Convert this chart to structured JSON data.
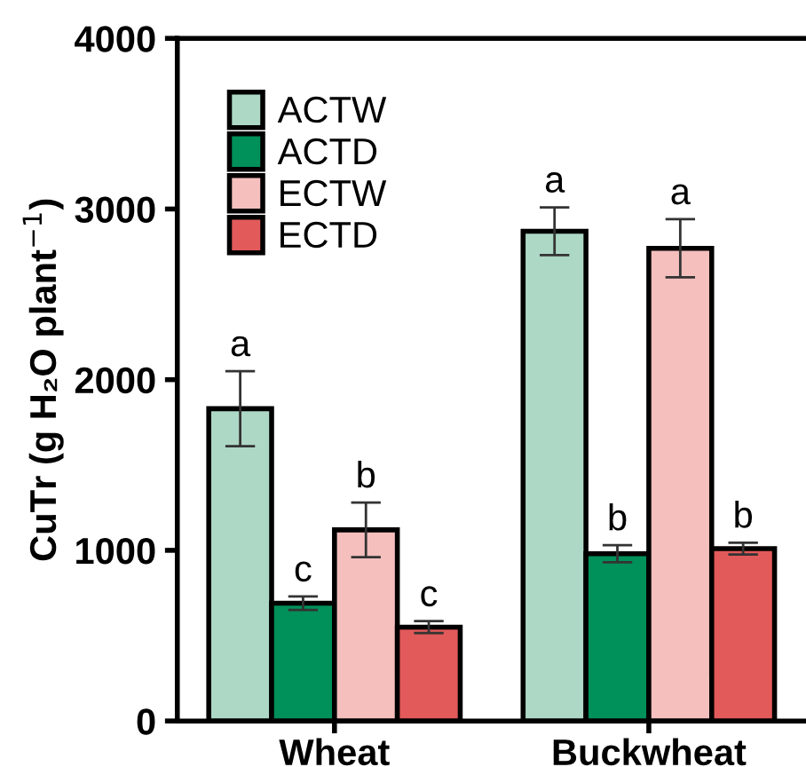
{
  "chart_data": {
    "type": "bar",
    "ylabel": "CuTr (g H₂O plant$^{−1}$)",
    "categories": [
      "Wheat",
      "Buckwheat"
    ],
    "series": [
      {
        "name": "ACTW",
        "color": "#add8c6",
        "values": [
          1830,
          2870
        ],
        "errors": [
          220,
          140
        ],
        "value_labels": [
          "a",
          "a"
        ]
      },
      {
        "name": "ACTD",
        "color": "#00905a",
        "values": [
          690,
          980
        ],
        "errors": [
          40,
          50
        ],
        "value_labels": [
          "c",
          "b"
        ]
      },
      {
        "name": "ECTW",
        "color": "#f4bfbd",
        "values": [
          1120,
          2770
        ],
        "errors": [
          160,
          170
        ],
        "value_labels": [
          "b",
          "a"
        ]
      },
      {
        "name": "ECTD",
        "color": "#e35a5a",
        "values": [
          550,
          1010
        ],
        "errors": [
          35,
          35
        ],
        "value_labels": [
          "c",
          "b"
        ]
      }
    ],
    "ylim": [
      0,
      4000
    ],
    "yticks": [
      0,
      1000,
      2000,
      3000,
      4000
    ],
    "grid": false,
    "legend": "top left"
  }
}
